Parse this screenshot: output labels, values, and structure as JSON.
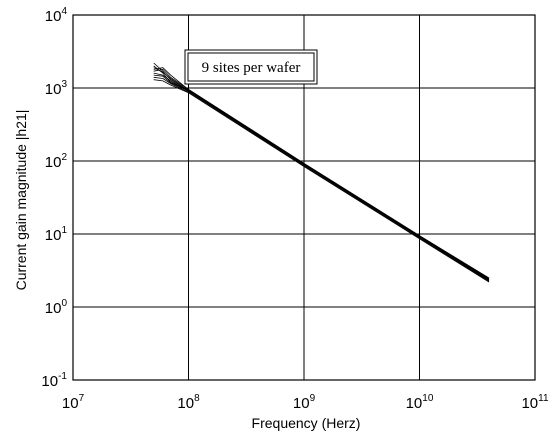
{
  "chart_data": {
    "type": "line",
    "xlabel": "Frequency (Herz)",
    "ylabel": "Current gain magnitude |h21|",
    "xscale": "log",
    "yscale": "log",
    "xlim": [
      10000000.0,
      100000000000.0
    ],
    "ylim": [
      0.1,
      10000
    ],
    "grid": true,
    "x_ticks": [
      {
        "base": "10",
        "exp": "7"
      },
      {
        "base": "10",
        "exp": "8"
      },
      {
        "base": "10",
        "exp": "9"
      },
      {
        "base": "10",
        "exp": "10"
      },
      {
        "base": "10",
        "exp": "11"
      }
    ],
    "y_ticks": [
      {
        "base": "10",
        "exp": "-1"
      },
      {
        "base": "10",
        "exp": "0"
      },
      {
        "base": "10",
        "exp": "1"
      },
      {
        "base": "10",
        "exp": "2"
      },
      {
        "base": "10",
        "exp": "3"
      },
      {
        "base": "10",
        "exp": "4"
      }
    ],
    "annotation": "9 sites per wafer",
    "series": [
      {
        "x": [
          50000000.0,
          60000000.0,
          70000000.0,
          100000000.0,
          1000000000.0,
          10000000000.0,
          40000000000.0
        ],
        "y": [
          2200,
          1700,
          1300,
          920,
          90,
          9.2,
          2.35
        ]
      },
      {
        "x": [
          50000000.0,
          60000000.0,
          70000000.0,
          100000000.0,
          1000000000.0,
          10000000000.0,
          40000000000.0
        ],
        "y": [
          1800,
          1900,
          1500,
          950,
          92,
          9.4,
          2.4
        ]
      },
      {
        "x": [
          50000000.0,
          60000000.0,
          70000000.0,
          100000000.0,
          1000000000.0,
          10000000000.0,
          40000000000.0
        ],
        "y": [
          1600,
          1500,
          1250,
          900,
          88,
          9.0,
          2.3
        ]
      },
      {
        "x": [
          50000000.0,
          60000000.0,
          70000000.0,
          100000000.0,
          1000000000.0,
          10000000000.0,
          40000000000.0
        ],
        "y": [
          1400,
          1350,
          1150,
          880,
          86,
          8.8,
          2.25
        ]
      },
      {
        "x": [
          50000000.0,
          60000000.0,
          70000000.0,
          100000000.0,
          1000000000.0,
          10000000000.0,
          40000000000.0
        ],
        "y": [
          2000,
          1600,
          1200,
          940,
          91,
          9.3,
          2.45
        ]
      },
      {
        "x": [
          50000000.0,
          60000000.0,
          70000000.0,
          100000000.0,
          1000000000.0,
          10000000000.0,
          40000000000.0
        ],
        "y": [
          1300,
          1250,
          1100,
          860,
          84,
          8.6,
          2.2
        ]
      },
      {
        "x": [
          50000000.0,
          60000000.0,
          70000000.0,
          100000000.0,
          1000000000.0,
          10000000000.0,
          40000000000.0
        ],
        "y": [
          1700,
          1800,
          1400,
          960,
          93,
          9.5,
          2.5
        ]
      },
      {
        "x": [
          50000000.0,
          60000000.0,
          70000000.0,
          100000000.0,
          1000000000.0,
          10000000000.0,
          40000000000.0
        ],
        "y": [
          1500,
          1450,
          1180,
          910,
          89,
          9.1,
          2.32
        ]
      },
      {
        "x": [
          50000000.0,
          60000000.0,
          70000000.0,
          100000000.0,
          1000000000.0,
          10000000000.0,
          40000000000.0
        ],
        "y": [
          1900,
          1650,
          1350,
          930,
          90,
          9.2,
          2.38
        ]
      }
    ]
  }
}
